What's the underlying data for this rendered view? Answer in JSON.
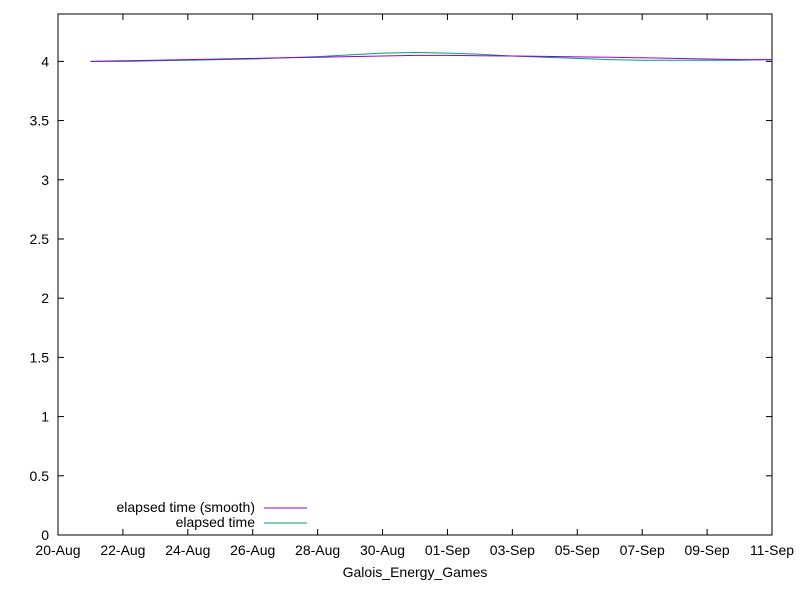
{
  "chart_data": {
    "type": "line",
    "title": "",
    "xlabel": "Galois_Energy_Games",
    "ylabel": "",
    "x_ticks": [
      "20-Aug",
      "22-Aug",
      "24-Aug",
      "26-Aug",
      "28-Aug",
      "30-Aug",
      "01-Sep",
      "03-Sep",
      "05-Sep",
      "07-Sep",
      "09-Sep",
      "11-Sep"
    ],
    "y_ticks": [
      "0",
      "0.5",
      "1",
      "1.5",
      "2",
      "2.5",
      "3",
      "3.5",
      "4"
    ],
    "xlim": [
      "2021-08-20",
      "2021-09-11"
    ],
    "ylim": [
      0,
      4.4
    ],
    "grid": false,
    "legend_position": "bottom-left",
    "series": [
      {
        "name": "elapsed time (smooth)",
        "color": "#9400d3",
        "x": [
          "2021-08-21",
          "2021-08-22",
          "2021-08-23",
          "2021-08-24",
          "2021-08-25",
          "2021-08-26",
          "2021-08-27",
          "2021-08-28",
          "2021-08-29",
          "2021-08-30",
          "2021-08-31",
          "2021-09-01",
          "2021-09-02",
          "2021-09-03",
          "2021-09-04",
          "2021-09-05",
          "2021-09-06",
          "2021-09-07",
          "2021-09-08",
          "2021-09-09",
          "2021-09-10",
          "2021-09-11"
        ],
        "values": [
          4.0,
          4.005,
          4.01,
          4.015,
          4.02,
          4.025,
          4.03,
          4.035,
          4.04,
          4.045,
          4.05,
          4.05,
          4.048,
          4.045,
          4.042,
          4.038,
          4.034,
          4.03,
          4.025,
          4.02,
          4.015,
          4.015
        ]
      },
      {
        "name": "elapsed time",
        "color": "#009e73",
        "x": [
          "2021-08-21",
          "2021-08-22",
          "2021-08-23",
          "2021-08-24",
          "2021-08-25",
          "2021-08-26",
          "2021-08-27",
          "2021-08-28",
          "2021-08-29",
          "2021-08-30",
          "2021-08-31",
          "2021-09-01",
          "2021-09-02",
          "2021-09-03",
          "2021-09-04",
          "2021-09-05",
          "2021-09-06",
          "2021-09-07",
          "2021-09-08",
          "2021-09-09",
          "2021-09-10",
          "2021-09-11"
        ],
        "values": [
          4.0,
          4.0,
          4.005,
          4.01,
          4.015,
          4.02,
          4.03,
          4.04,
          4.055,
          4.07,
          4.075,
          4.07,
          4.06,
          4.045,
          4.035,
          4.025,
          4.015,
          4.01,
          4.01,
          4.01,
          4.01,
          4.015
        ]
      }
    ]
  }
}
